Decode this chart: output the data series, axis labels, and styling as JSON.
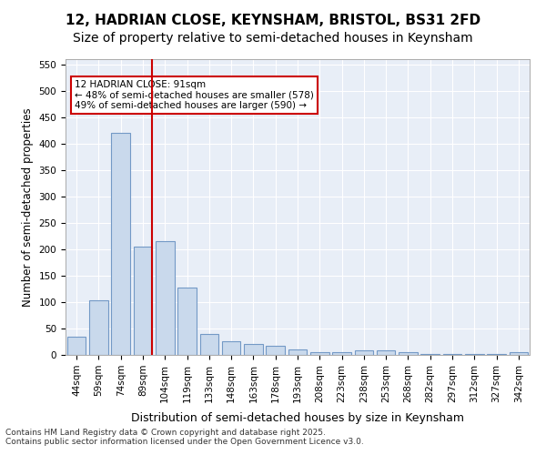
{
  "title_line1": "12, HADRIAN CLOSE, KEYNSHAM, BRISTOL, BS31 2FD",
  "title_line2": "Size of property relative to semi-detached houses in Keynsham",
  "xlabel": "Distribution of semi-detached houses by size in Keynsham",
  "ylabel": "Number of semi-detached properties",
  "categories": [
    "44sqm",
    "59sqm",
    "74sqm",
    "89sqm",
    "104sqm",
    "119sqm",
    "133sqm",
    "148sqm",
    "163sqm",
    "178sqm",
    "193sqm",
    "208sqm",
    "223sqm",
    "238sqm",
    "253sqm",
    "268sqm",
    "282sqm",
    "297sqm",
    "312sqm",
    "327sqm",
    "342sqm"
  ],
  "values": [
    35,
    103,
    420,
    205,
    215,
    127,
    40,
    25,
    20,
    17,
    10,
    5,
    5,
    8,
    8,
    5,
    2,
    2,
    2,
    2,
    5
  ],
  "bar_color": "#c9d9ec",
  "bar_edge_color": "#7399c6",
  "vline_x": 3,
  "vline_color": "#cc0000",
  "annotation_text": "12 HADRIAN CLOSE: 91sqm\n← 48% of semi-detached houses are smaller (578)\n49% of semi-detached houses are larger (590) →",
  "annotation_box_color": "#ffffff",
  "annotation_box_edge_color": "#cc0000",
  "ylim": [
    0,
    560
  ],
  "yticks": [
    0,
    50,
    100,
    150,
    200,
    250,
    300,
    350,
    400,
    450,
    500,
    550
  ],
  "background_color": "#e8eef7",
  "plot_bg_color": "#e8eef7",
  "footer_text": "Contains HM Land Registry data © Crown copyright and database right 2025.\nContains public sector information licensed under the Open Government Licence v3.0.",
  "title_fontsize": 11,
  "subtitle_fontsize": 10,
  "tick_fontsize": 7.5,
  "xlabel_fontsize": 9,
  "ylabel_fontsize": 8.5
}
